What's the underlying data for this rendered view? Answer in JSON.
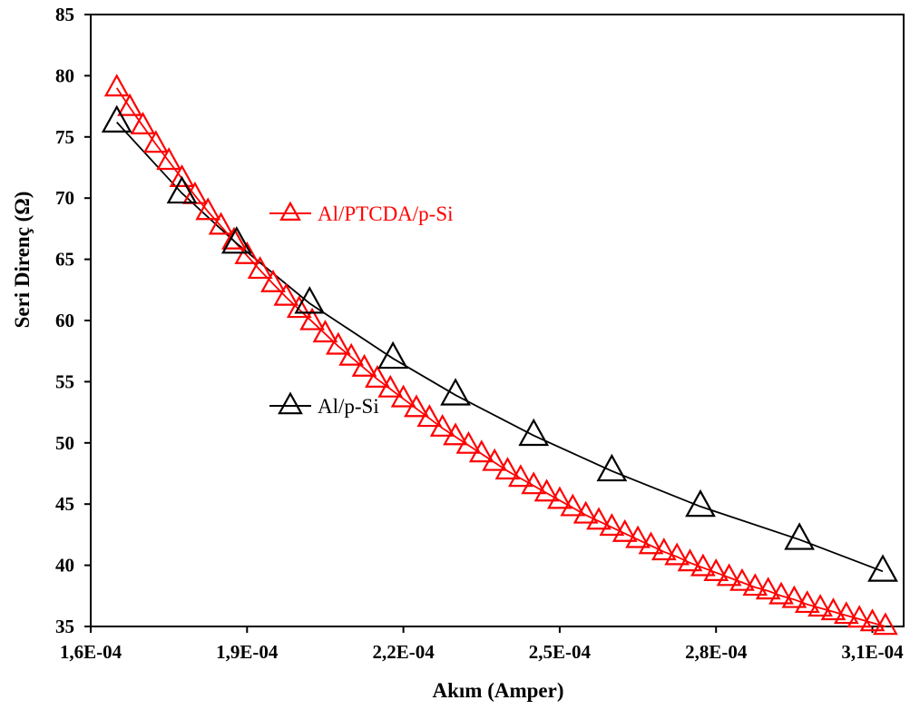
{
  "chart_data": {
    "type": "scatter",
    "xlabel": "Akım (Amper)",
    "ylabel": "Seri Direnç  (Ω)",
    "xlim": [
      0.00016,
      0.000316
    ],
    "ylim": [
      35,
      85
    ],
    "x_ticks": [
      0.00016,
      0.00019,
      0.00022,
      0.00025,
      0.00028,
      0.00031
    ],
    "x_tick_labels": [
      "1,6E-04",
      "1,9E-04",
      "2,2E-04",
      "2,5E-04",
      "2,8E-04",
      "3,1E-04"
    ],
    "y_ticks": [
      35,
      40,
      45,
      50,
      55,
      60,
      65,
      70,
      75,
      80,
      85
    ],
    "y_tick_labels": [
      "35",
      "40",
      "45",
      "50",
      "55",
      "60",
      "65",
      "70",
      "75",
      "80",
      "85"
    ],
    "grid": false,
    "series": [
      {
        "name": "Al/PTCDA/p-Si",
        "color": "#ff0000",
        "marker": "triangle-open",
        "x": [
          0.000165,
          0.0001675,
          0.00017,
          0.0001725,
          0.000175,
          0.0001775,
          0.00018,
          0.0001825,
          0.000185,
          0.0001875,
          0.00019,
          0.0001925,
          0.000195,
          0.0001975,
          0.0002,
          0.0002025,
          0.000205,
          0.0002075,
          0.00021,
          0.0002125,
          0.000215,
          0.0002175,
          0.00022,
          0.0002225,
          0.000225,
          0.0002275,
          0.00023,
          0.0002325,
          0.000235,
          0.0002375,
          0.00024,
          0.0002425,
          0.000245,
          0.0002475,
          0.00025,
          0.0002525,
          0.000255,
          0.0002575,
          0.00026,
          0.0002625,
          0.000265,
          0.0002675,
          0.00027,
          0.0002725,
          0.000275,
          0.0002775,
          0.00028,
          0.0002825,
          0.000285,
          0.0002875,
          0.00029,
          0.0002925,
          0.000295,
          0.0002975,
          0.0003,
          0.0003025,
          0.000305,
          0.0003075,
          0.00031,
          0.0003125
        ],
        "y": [
          79.0,
          77.4,
          75.9,
          74.4,
          73.0,
          71.6,
          70.2,
          68.9,
          67.7,
          66.5,
          65.3,
          64.1,
          63.0,
          61.9,
          60.9,
          59.9,
          58.9,
          57.9,
          57.0,
          56.1,
          55.2,
          54.4,
          53.6,
          52.8,
          52.0,
          51.2,
          50.5,
          49.8,
          49.1,
          48.4,
          47.7,
          47.1,
          46.5,
          45.9,
          45.3,
          44.7,
          44.1,
          43.6,
          43.1,
          42.6,
          42.1,
          41.6,
          41.1,
          40.7,
          40.2,
          39.8,
          39.4,
          39.0,
          38.6,
          38.2,
          37.9,
          37.5,
          37.2,
          36.8,
          36.5,
          36.2,
          35.9,
          35.6,
          35.3,
          35.0
        ]
      },
      {
        "name": "Al/p-Si",
        "color": "#000000",
        "marker": "triangle-open",
        "x": [
          0.000165,
          0.0001775,
          0.000188,
          0.000202,
          0.000218,
          0.00023,
          0.000245,
          0.00026,
          0.000277,
          0.000296,
          0.000312
        ],
        "y": [
          76.2,
          70.4,
          66.3,
          61.4,
          56.9,
          53.9,
          50.6,
          47.7,
          44.8,
          42.1,
          39.5
        ]
      }
    ],
    "legend": "inside, upper-middle"
  }
}
